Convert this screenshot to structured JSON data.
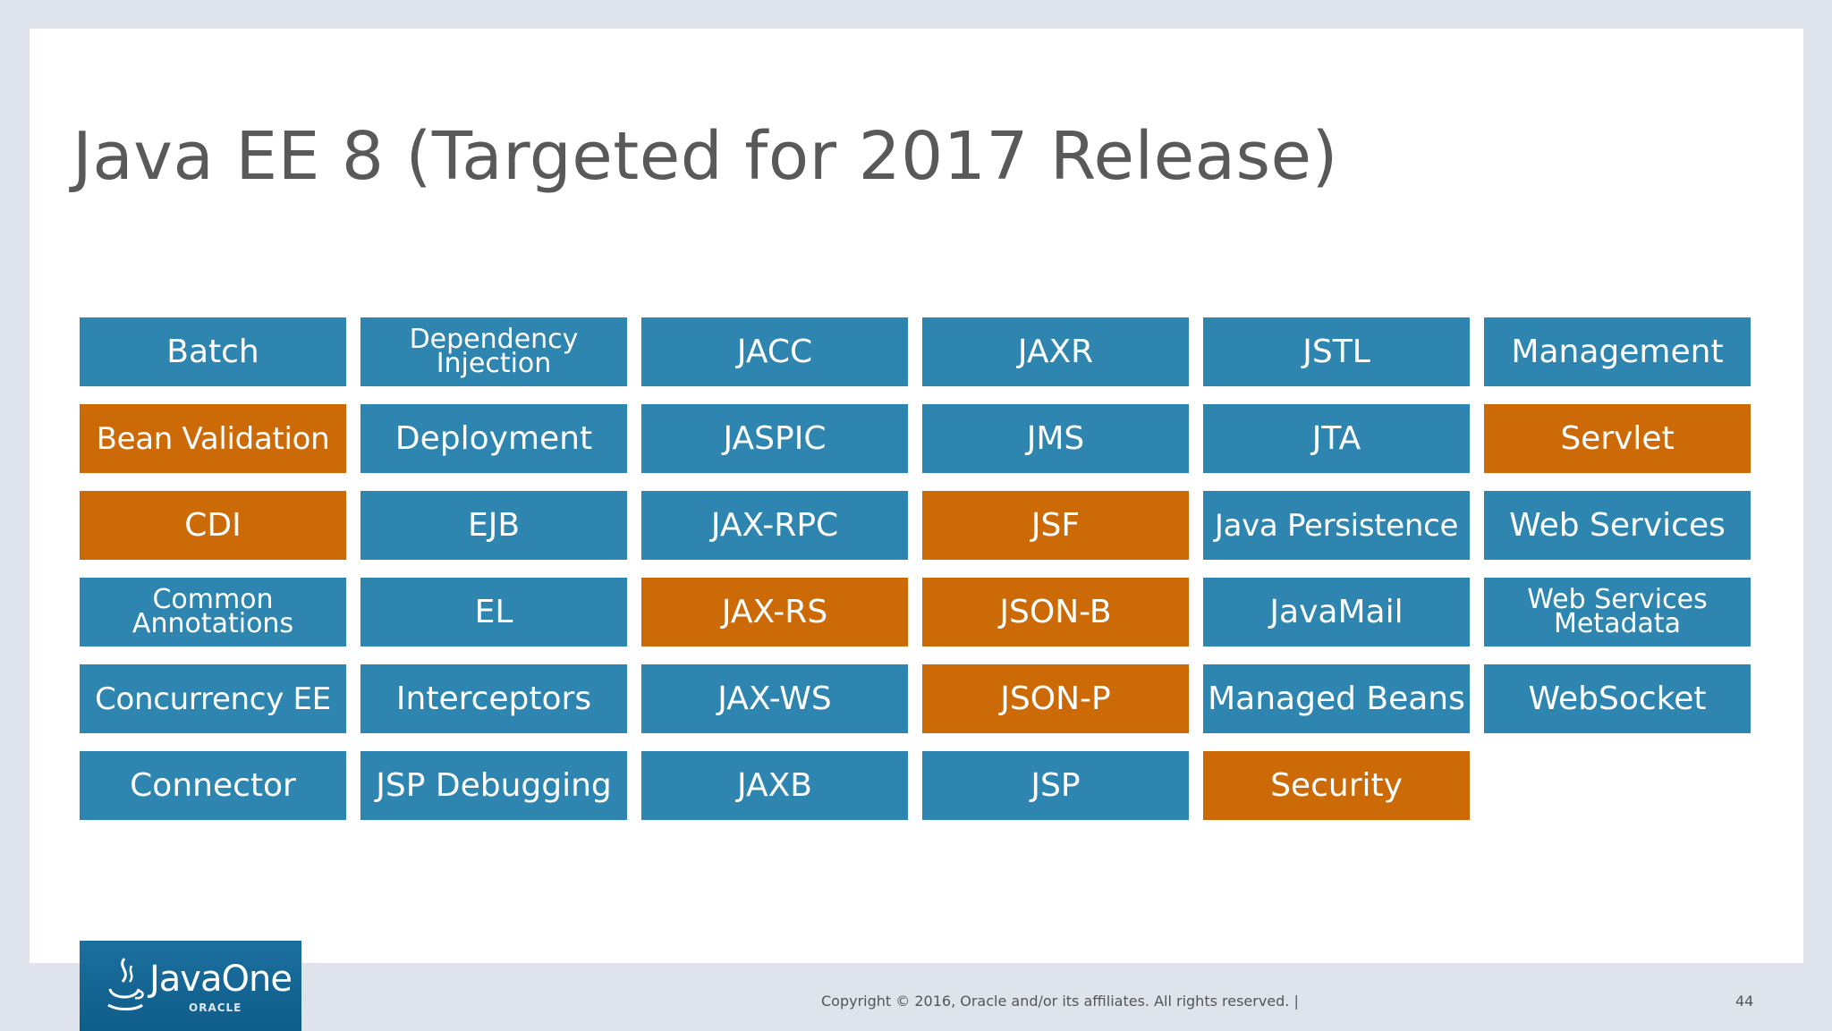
{
  "title": "Java EE 8 (Targeted for 2017 Release)",
  "colors": {
    "blue": "#2e86b0",
    "orange": "#cc6a08"
  },
  "tiles": [
    {
      "label": "Batch",
      "color": "blue"
    },
    {
      "label": "Dependency Injection",
      "color": "blue",
      "two_line": true
    },
    {
      "label": "JACC",
      "color": "blue"
    },
    {
      "label": "JAXR",
      "color": "blue"
    },
    {
      "label": "JSTL",
      "color": "blue"
    },
    {
      "label": "Management",
      "color": "blue"
    },
    {
      "label": "Bean Validation",
      "color": "orange"
    },
    {
      "label": "Deployment",
      "color": "blue"
    },
    {
      "label": "JASPIC",
      "color": "blue"
    },
    {
      "label": "JMS",
      "color": "blue"
    },
    {
      "label": "JTA",
      "color": "blue"
    },
    {
      "label": "Servlet",
      "color": "orange"
    },
    {
      "label": "CDI",
      "color": "orange"
    },
    {
      "label": "EJB",
      "color": "blue"
    },
    {
      "label": "JAX-RPC",
      "color": "blue"
    },
    {
      "label": "JSF",
      "color": "orange"
    },
    {
      "label": "Java Persistence",
      "color": "blue"
    },
    {
      "label": "Web Services",
      "color": "blue"
    },
    {
      "label": "Common Annotations",
      "color": "blue",
      "two_line": true
    },
    {
      "label": "EL",
      "color": "blue"
    },
    {
      "label": "JAX-RS",
      "color": "orange"
    },
    {
      "label": "JSON-B",
      "color": "orange"
    },
    {
      "label": "JavaMail",
      "color": "blue"
    },
    {
      "label": "Web Services Metadata",
      "color": "blue",
      "two_line": true
    },
    {
      "label": "Concurrency EE",
      "color": "blue"
    },
    {
      "label": "Interceptors",
      "color": "blue"
    },
    {
      "label": "JAX-WS",
      "color": "blue"
    },
    {
      "label": "JSON-P",
      "color": "orange"
    },
    {
      "label": "Managed Beans",
      "color": "blue"
    },
    {
      "label": "WebSocket",
      "color": "blue"
    },
    {
      "label": "Connector",
      "color": "blue"
    },
    {
      "label": "JSP Debugging",
      "color": "blue"
    },
    {
      "label": "JAXB",
      "color": "blue"
    },
    {
      "label": "JSP",
      "color": "blue"
    },
    {
      "label": "Security",
      "color": "orange"
    }
  ],
  "logo": {
    "brand": "JavaOne",
    "sub": "ORACLE",
    "icon": "java-cup-icon"
  },
  "footer": {
    "copyright": "Copyright © 2016, Oracle and/or its affiliates. All rights reserved.  |",
    "page": "44"
  }
}
